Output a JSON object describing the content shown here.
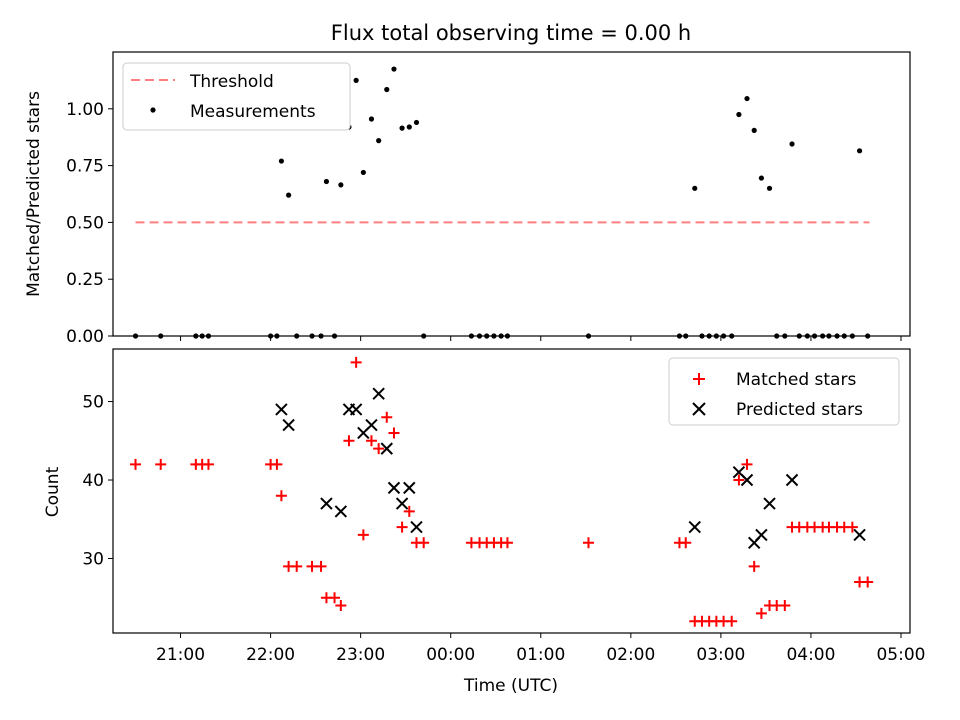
{
  "chart_data": [
    {
      "panel": "top",
      "type": "scatter",
      "title": "Flux total observing time = 0.00 h",
      "xlabel": "",
      "ylabel": "Matched/Predicted stars",
      "xlim": [
        20.25,
        29.1
      ],
      "ylim": [
        0,
        1.25
      ],
      "yticks": [
        0.0,
        0.25,
        0.5,
        0.75,
        1.0
      ],
      "ytick_labels": [
        "0.00",
        "0.25",
        "0.50",
        "0.75",
        "1.00"
      ],
      "legend_position": "top-left",
      "series": [
        {
          "name": "Threshold",
          "kind": "dashed-line",
          "color": "#ff7f7f",
          "x": [
            20.5,
            28.65
          ],
          "y": [
            0.5,
            0.5
          ]
        },
        {
          "name": "Measurements",
          "kind": "dot",
          "color": "#000000",
          "points": [
            [
              20.5,
              0
            ],
            [
              20.78,
              0
            ],
            [
              21.17,
              0
            ],
            [
              21.24,
              0
            ],
            [
              21.31,
              0
            ],
            [
              22.0,
              0
            ],
            [
              22.07,
              0
            ],
            [
              22.29,
              0
            ],
            [
              22.46,
              0
            ],
            [
              22.56,
              0
            ],
            [
              22.71,
              0
            ],
            [
              22.12,
              0.77
            ],
            [
              22.2,
              0.62
            ],
            [
              22.62,
              0.68
            ],
            [
              22.78,
              0.665
            ],
            [
              22.87,
              0.92
            ],
            [
              22.95,
              1.125
            ],
            [
              23.03,
              0.72
            ],
            [
              23.12,
              0.955
            ],
            [
              23.2,
              0.86
            ],
            [
              23.29,
              1.085
            ],
            [
              23.37,
              1.175
            ],
            [
              23.46,
              0.915
            ],
            [
              23.54,
              0.92
            ],
            [
              23.62,
              0.94
            ],
            [
              23.7,
              0
            ],
            [
              24.23,
              0
            ],
            [
              24.32,
              0
            ],
            [
              24.4,
              0
            ],
            [
              24.48,
              0
            ],
            [
              24.56,
              0
            ],
            [
              24.63,
              0
            ],
            [
              25.53,
              0
            ],
            [
              26.54,
              0
            ],
            [
              26.61,
              0
            ],
            [
              26.79,
              0
            ],
            [
              26.87,
              0
            ],
            [
              26.95,
              0
            ],
            [
              27.03,
              0
            ],
            [
              27.12,
              0
            ],
            [
              26.71,
              0.65
            ],
            [
              27.2,
              0.975
            ],
            [
              27.29,
              1.045
            ],
            [
              27.37,
              0.905
            ],
            [
              27.45,
              0.695
            ],
            [
              27.54,
              0.65
            ],
            [
              27.79,
              0.845
            ],
            [
              27.62,
              0
            ],
            [
              27.71,
              0
            ],
            [
              27.87,
              0
            ],
            [
              27.96,
              0
            ],
            [
              28.04,
              0
            ],
            [
              28.13,
              0
            ],
            [
              28.2,
              0
            ],
            [
              28.29,
              0
            ],
            [
              28.37,
              0
            ],
            [
              28.46,
              0
            ],
            [
              28.63,
              0
            ],
            [
              28.54,
              0.815
            ]
          ]
        }
      ]
    },
    {
      "panel": "bottom",
      "type": "scatter",
      "title": "",
      "xlabel": "Time (UTC)",
      "ylabel": "Count",
      "xlim": [
        20.25,
        29.1
      ],
      "ylim": [
        20.5,
        56.7
      ],
      "yticks": [
        30,
        40,
        50
      ],
      "ytick_labels": [
        "30",
        "40",
        "50"
      ],
      "xticks": [
        21,
        22,
        23,
        24,
        25,
        26,
        27,
        28,
        29
      ],
      "xtick_labels": [
        "21:00",
        "22:00",
        "23:00",
        "00:00",
        "01:00",
        "02:00",
        "03:00",
        "04:00",
        "05:00"
      ],
      "legend_position": "top-right",
      "series": [
        {
          "name": "Matched stars",
          "kind": "plus",
          "color": "#ff0000",
          "points": [
            [
              20.5,
              42
            ],
            [
              20.78,
              42
            ],
            [
              21.17,
              42
            ],
            [
              21.24,
              42
            ],
            [
              21.31,
              42
            ],
            [
              22.0,
              42
            ],
            [
              22.07,
              42
            ],
            [
              22.12,
              38
            ],
            [
              22.2,
              29
            ],
            [
              22.29,
              29
            ],
            [
              22.46,
              29
            ],
            [
              22.56,
              29
            ],
            [
              22.62,
              25
            ],
            [
              22.71,
              25
            ],
            [
              22.78,
              24
            ],
            [
              22.87,
              45
            ],
            [
              22.95,
              55
            ],
            [
              23.03,
              33
            ],
            [
              23.12,
              45
            ],
            [
              23.2,
              44
            ],
            [
              23.29,
              48
            ],
            [
              23.37,
              46
            ],
            [
              23.46,
              34
            ],
            [
              23.54,
              36
            ],
            [
              23.62,
              32
            ],
            [
              23.7,
              32
            ],
            [
              24.23,
              32
            ],
            [
              24.32,
              32
            ],
            [
              24.4,
              32
            ],
            [
              24.48,
              32
            ],
            [
              24.56,
              32
            ],
            [
              24.63,
              32
            ],
            [
              25.53,
              32
            ],
            [
              26.54,
              32
            ],
            [
              26.61,
              32
            ],
            [
              26.71,
              22
            ],
            [
              26.79,
              22
            ],
            [
              26.87,
              22
            ],
            [
              26.95,
              22
            ],
            [
              27.03,
              22
            ],
            [
              27.12,
              22
            ],
            [
              27.2,
              40
            ],
            [
              27.29,
              42
            ],
            [
              27.37,
              29
            ],
            [
              27.45,
              23
            ],
            [
              27.54,
              24
            ],
            [
              27.62,
              24
            ],
            [
              27.71,
              24
            ],
            [
              27.79,
              34
            ],
            [
              27.87,
              34
            ],
            [
              27.96,
              34
            ],
            [
              28.04,
              34
            ],
            [
              28.13,
              34
            ],
            [
              28.2,
              34
            ],
            [
              28.29,
              34
            ],
            [
              28.37,
              34
            ],
            [
              28.46,
              34
            ],
            [
              28.54,
              27
            ],
            [
              28.63,
              27
            ]
          ]
        },
        {
          "name": "Predicted stars",
          "kind": "x",
          "color": "#000000",
          "points": [
            [
              22.12,
              49
            ],
            [
              22.2,
              47
            ],
            [
              22.62,
              37
            ],
            [
              22.78,
              36
            ],
            [
              22.87,
              49
            ],
            [
              22.95,
              49
            ],
            [
              23.03,
              46
            ],
            [
              23.12,
              47
            ],
            [
              23.2,
              51
            ],
            [
              23.29,
              44
            ],
            [
              23.37,
              39
            ],
            [
              23.46,
              37
            ],
            [
              23.54,
              39
            ],
            [
              23.62,
              34
            ],
            [
              26.71,
              34
            ],
            [
              27.2,
              41
            ],
            [
              27.29,
              40
            ],
            [
              27.37,
              32
            ],
            [
              27.45,
              33
            ],
            [
              27.54,
              37
            ],
            [
              27.79,
              40
            ],
            [
              28.54,
              33
            ]
          ]
        }
      ]
    }
  ]
}
